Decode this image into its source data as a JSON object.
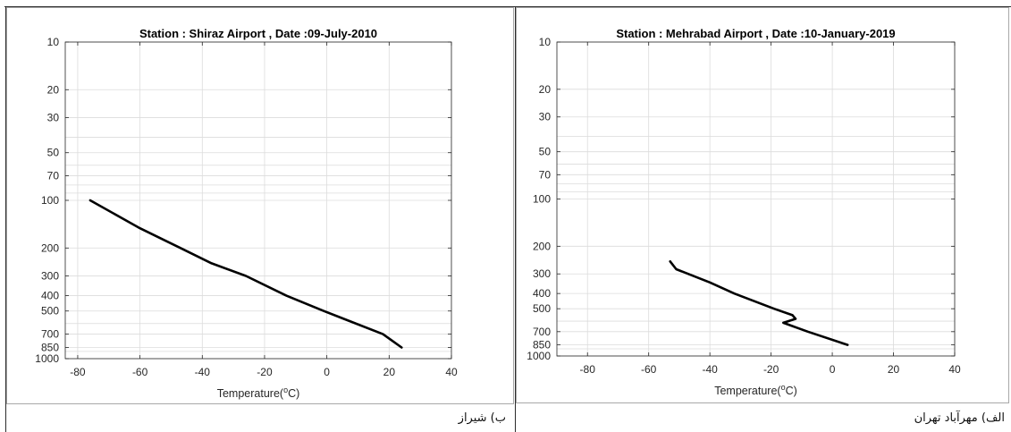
{
  "panels": [
    {
      "caption": "ب) شیراز"
    },
    {
      "caption": "الف) مهرآباد تهران"
    }
  ],
  "chart_data": [
    {
      "type": "line",
      "title": "Station : Shiraz Airport , Date :09-July-2010",
      "xlabel": {
        "text": "Temperature(",
        "sup": "o",
        "end": "C)"
      },
      "xlim": [
        -84,
        40
      ],
      "ylim": [
        10,
        1000
      ],
      "yscale": "log",
      "ydirection": "reverse",
      "xticks": [
        -80,
        -60,
        -40,
        -20,
        0,
        20,
        40
      ],
      "yticks": [
        10,
        20,
        30,
        50,
        70,
        100,
        200,
        300,
        400,
        500,
        700,
        850,
        1000
      ],
      "minor_grid_y": [
        40,
        60,
        80,
        90,
        600,
        900
      ],
      "grid": true,
      "line_color": "#000000",
      "series": [
        {
          "x": [
            -76,
            -60,
            -47,
            -37,
            -26,
            -13,
            -1,
            18,
            24
          ],
          "y": [
            100,
            150,
            200,
            250,
            300,
            400,
            500,
            700,
            850
          ]
        }
      ]
    },
    {
      "type": "line",
      "title": "Station : Mehrabad Airport , Date :10-January-2019",
      "xlabel": {
        "text": "Temperature(",
        "sup": "o",
        "end": "C)"
      },
      "xlim": [
        -90,
        40
      ],
      "ylim": [
        10,
        1000
      ],
      "yscale": "log",
      "ydirection": "reverse",
      "xticks": [
        -80,
        -60,
        -40,
        -20,
        0,
        20,
        40
      ],
      "yticks": [
        10,
        20,
        30,
        50,
        70,
        100,
        200,
        300,
        400,
        500,
        700,
        850,
        1000
      ],
      "minor_grid_y": [
        40,
        60,
        80,
        90,
        600,
        900
      ],
      "grid": true,
      "line_color": "#000000",
      "series": [
        {
          "x": [
            -53,
            -51,
            -40,
            -32,
            -19,
            -13,
            -12,
            -16,
            -13,
            -8,
            5
          ],
          "y": [
            250,
            280,
            340,
            400,
            500,
            550,
            580,
            615,
            645,
            700,
            850
          ]
        }
      ]
    }
  ]
}
